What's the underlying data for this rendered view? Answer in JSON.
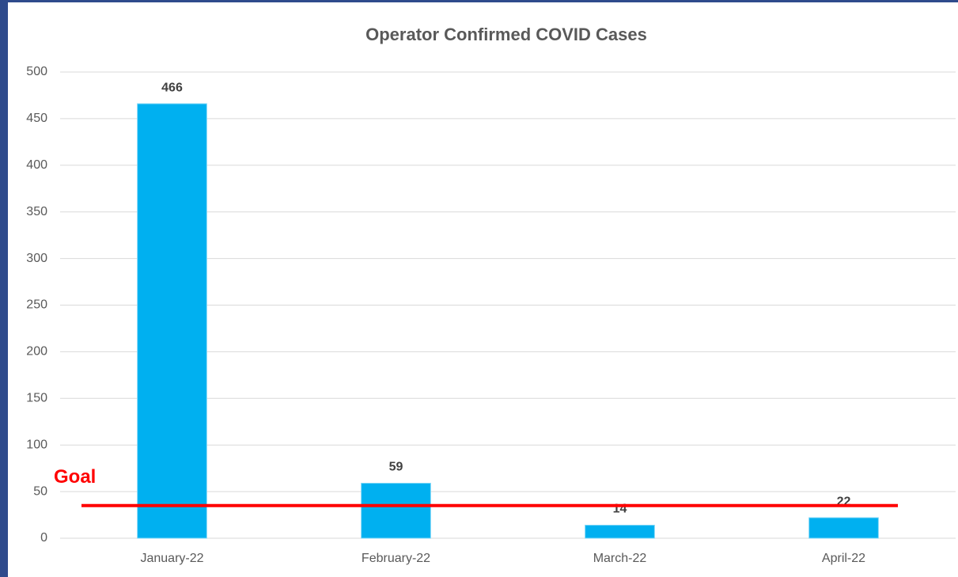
{
  "chart_data": {
    "type": "bar",
    "title": "Operator Confirmed COVID Cases",
    "categories": [
      "January-22",
      "February-22",
      "March-22",
      "April-22"
    ],
    "values": [
      466,
      59,
      14,
      22
    ],
    "color": "#00b0f0",
    "ylim": [
      0,
      500
    ],
    "yticks": [
      0,
      50,
      100,
      150,
      200,
      250,
      300,
      350,
      400,
      450,
      500
    ],
    "grid": true,
    "goal": {
      "label": "Goal",
      "value": 35,
      "color": "#ff0000"
    }
  }
}
